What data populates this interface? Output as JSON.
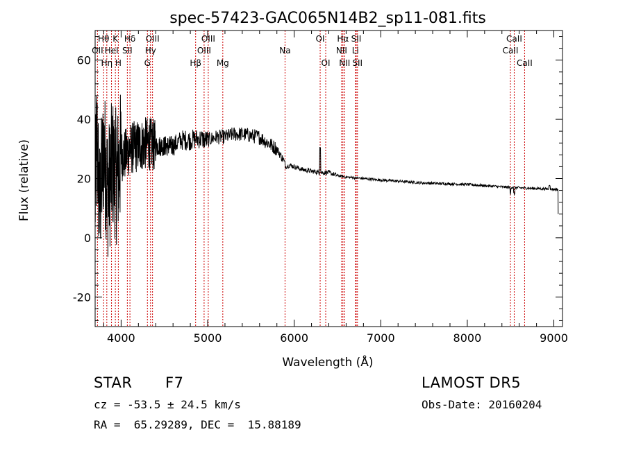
{
  "chart_data": {
    "type": "line",
    "title": "spec-57423-GAC065N14B2_sp11-081.fits",
    "xlabel": "Wavelength (Å)",
    "ylabel": "Flux (relative)",
    "xlim": [
      3700,
      9100
    ],
    "ylim": [
      -30,
      70
    ],
    "xticks": [
      4000,
      5000,
      6000,
      7000,
      8000,
      9000
    ],
    "yticks": [
      -20,
      0,
      20,
      40,
      60
    ],
    "line_color": "#000000",
    "marker_line_color": "#cc0000",
    "spectrum_anchors": [
      [
        3700,
        12
      ],
      [
        3720,
        35
      ],
      [
        3750,
        10
      ],
      [
        3800,
        30
      ],
      [
        3850,
        15
      ],
      [
        3900,
        25
      ],
      [
        3950,
        20
      ],
      [
        4000,
        28
      ],
      [
        4050,
        28
      ],
      [
        4100,
        30
      ],
      [
        4200,
        31
      ],
      [
        4300,
        32
      ],
      [
        4400,
        31
      ],
      [
        4500,
        31
      ],
      [
        4600,
        31
      ],
      [
        4700,
        33
      ],
      [
        4800,
        33
      ],
      [
        4900,
        33.5
      ],
      [
        5000,
        33
      ],
      [
        5100,
        34
      ],
      [
        5200,
        34
      ],
      [
        5300,
        35
      ],
      [
        5400,
        35
      ],
      [
        5500,
        34.5
      ],
      [
        5600,
        34
      ],
      [
        5700,
        32
      ],
      [
        5800,
        30
      ],
      [
        5880,
        26
      ],
      [
        5900,
        24
      ],
      [
        5950,
        24.5
      ],
      [
        6000,
        24
      ],
      [
        6100,
        23
      ],
      [
        6200,
        22.5
      ],
      [
        6300,
        22
      ],
      [
        6400,
        22
      ],
      [
        6500,
        21
      ],
      [
        6600,
        20.5
      ],
      [
        6800,
        20
      ],
      [
        7000,
        19.5
      ],
      [
        7500,
        18.5
      ],
      [
        8000,
        18
      ],
      [
        8500,
        17
      ],
      [
        8900,
        16.5
      ],
      [
        9050,
        16.3
      ]
    ],
    "spectral_lines": [
      {
        "label": "OII",
        "wave": 3727,
        "row": 2
      },
      {
        "label": "Hθ",
        "wave": 3798,
        "row": 1
      },
      {
        "label": "Hη",
        "wave": 3835,
        "row": 3
      },
      {
        "label": "HeI",
        "wave": 3889,
        "row": 2
      },
      {
        "label": "K",
        "wave": 3934,
        "row": 1
      },
      {
        "label": "H",
        "wave": 3968,
        "row": 3
      },
      {
        "label": "SII",
        "wave": 4072,
        "row": 2
      },
      {
        "label": "Hδ",
        "wave": 4102,
        "row": 1
      },
      {
        "label": "G",
        "wave": 4304,
        "row": 3
      },
      {
        "label": "Hγ",
        "wave": 4340,
        "row": 2
      },
      {
        "label": "OIII",
        "wave": 4363,
        "row": 1
      },
      {
        "label": "Hβ",
        "wave": 4861,
        "row": 3
      },
      {
        "label": "OIII",
        "wave": 4959,
        "row": 2
      },
      {
        "label": "OIII",
        "wave": 5007,
        "row": 1
      },
      {
        "label": "Mg",
        "wave": 5175,
        "row": 3
      },
      {
        "label": "Na",
        "wave": 5894,
        "row": 2
      },
      {
        "label": "OI",
        "wave": 6300,
        "row": 1
      },
      {
        "label": "OI",
        "wave": 6364,
        "row": 3
      },
      {
        "label": "NII",
        "wave": 6548,
        "row": 2
      },
      {
        "label": "Hα",
        "wave": 6563,
        "row": 1
      },
      {
        "label": "NII",
        "wave": 6583,
        "row": 3
      },
      {
        "label": "Li",
        "wave": 6707,
        "row": 2
      },
      {
        "label": "SII",
        "wave": 6717,
        "row": 1
      },
      {
        "label": "SII",
        "wave": 6731,
        "row": 3
      },
      {
        "label": "CaII",
        "wave": 8498,
        "row": 2
      },
      {
        "label": "CaII",
        "wave": 8542,
        "row": 1
      },
      {
        "label": "CaII",
        "wave": 8662,
        "row": 3
      }
    ]
  },
  "info": {
    "class_label": "STAR",
    "subclass": "F7",
    "survey": "LAMOST DR5",
    "redshift_line": "cz = -53.5 ± 24.5 km/s",
    "obs_date_line": "Obs-Date: 20160204",
    "coords_line": "RA =  65.29289, DEC =  15.88189"
  }
}
